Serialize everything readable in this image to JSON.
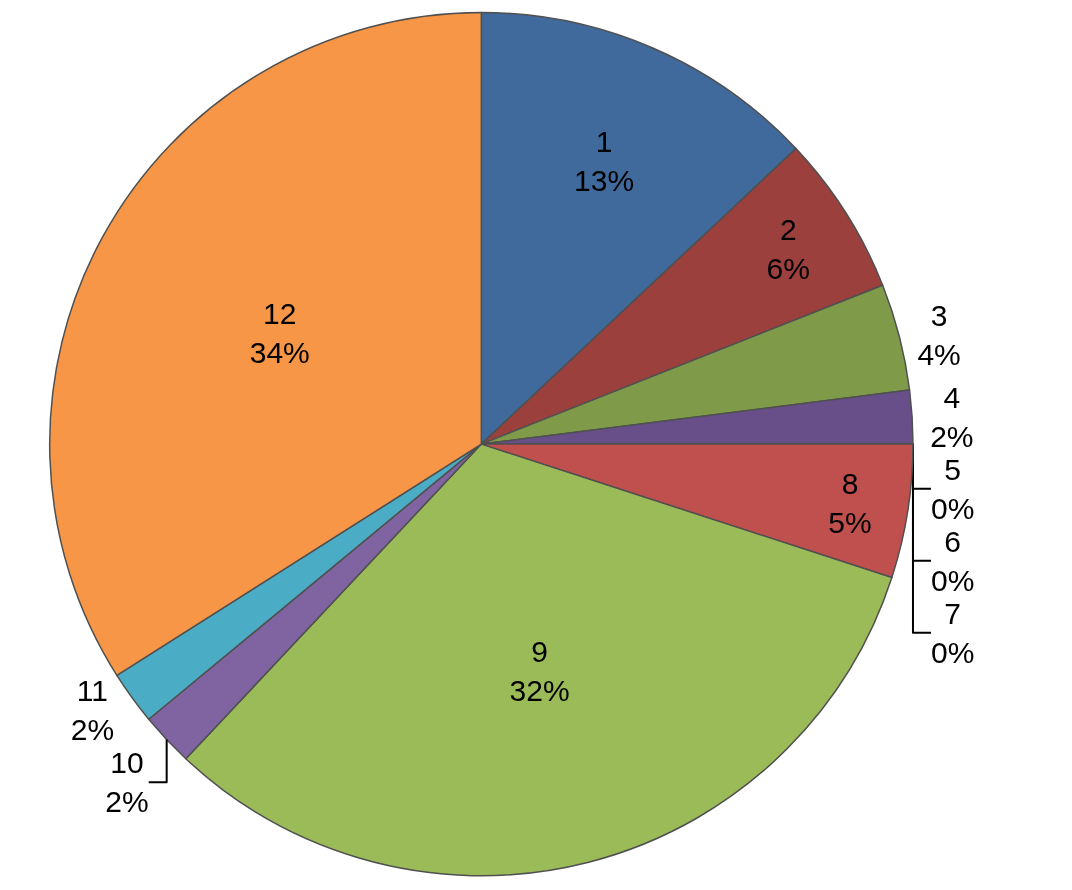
{
  "chart_data": {
    "type": "pie",
    "categories": [
      "1",
      "2",
      "3",
      "4",
      "5",
      "6",
      "7",
      "8",
      "9",
      "10",
      "11",
      "12"
    ],
    "values": [
      13,
      6,
      4,
      2,
      0,
      0,
      0,
      5,
      32,
      2,
      2,
      34
    ],
    "value_labels": [
      "13%",
      "6%",
      "4%",
      "2%",
      "0%",
      "0%",
      "0%",
      "5%",
      "32%",
      "2%",
      "2%",
      "34%"
    ],
    "colors": [
      "#3f6a9b",
      "#9b403d",
      "#7f9a48",
      "#684f8a",
      "#4bacc6",
      "#f79646",
      "#2c4d75",
      "#c0504d",
      "#9bbb59",
      "#8064a2",
      "#4bacc6",
      "#f79646"
    ],
    "legend": false
  }
}
